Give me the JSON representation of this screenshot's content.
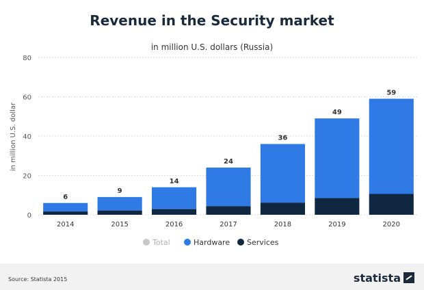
{
  "chart_data": {
    "type": "bar",
    "stacked": true,
    "title": "Revenue in the Security market",
    "subtitle": "in million U.S. dollars (Russia)",
    "ylabel": "in million U.S. dollar",
    "xlabel": "",
    "ylim": [
      0,
      80
    ],
    "yticks": [
      0,
      20,
      40,
      60,
      80
    ],
    "grid": true,
    "legend_position": "bottom-center",
    "categories": [
      "2014",
      "2015",
      "2016",
      "2017",
      "2018",
      "2019",
      "2020"
    ],
    "totals": [
      6,
      9,
      14,
      24,
      36,
      49,
      59
    ],
    "series": [
      {
        "name": "Total",
        "color": "#c8c8c8",
        "values": [
          6,
          9,
          14,
          24,
          36,
          49,
          59
        ]
      },
      {
        "name": "Hardware",
        "color": "#2f7ae5",
        "values": [
          4.3,
          6.8,
          11.1,
          19.6,
          29.8,
          40.5,
          48.4
        ]
      },
      {
        "name": "Services",
        "color": "#0f2741",
        "values": [
          1.7,
          2.2,
          2.9,
          4.4,
          6.2,
          8.5,
          10.6
        ]
      }
    ]
  },
  "source": "Source: Statista 2015",
  "brand": {
    "name": "statista"
  }
}
